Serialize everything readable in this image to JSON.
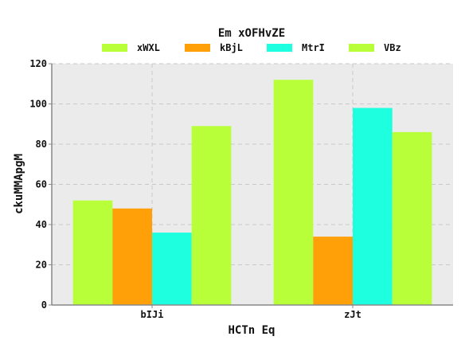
{
  "chart_data": {
    "type": "bar",
    "title": "Em xOFHvZE",
    "xlabel": "HCTn Eq",
    "ylabel": "ckuMMApgM",
    "categories": [
      "bIJi",
      "zJt"
    ],
    "series": [
      {
        "name": "xWXL",
        "color": "#b8ff3a",
        "values": [
          52,
          112
        ]
      },
      {
        "name": "kBjL",
        "color": "#ffa008",
        "values": [
          48,
          34
        ]
      },
      {
        "name": "MtrI",
        "color": "#1dffdf",
        "values": [
          36,
          98
        ]
      },
      {
        "name": "VBz",
        "color": "#b8ff3a",
        "values": [
          89,
          86
        ]
      }
    ],
    "ylim": [
      0,
      120
    ],
    "yticks": [
      0,
      20,
      40,
      60,
      80,
      100,
      120
    ],
    "grid": true,
    "legend_position": "top",
    "colors": {
      "plot_background": "#ebebeb",
      "grid": "#c8c8c8",
      "axis": "#888888"
    }
  }
}
